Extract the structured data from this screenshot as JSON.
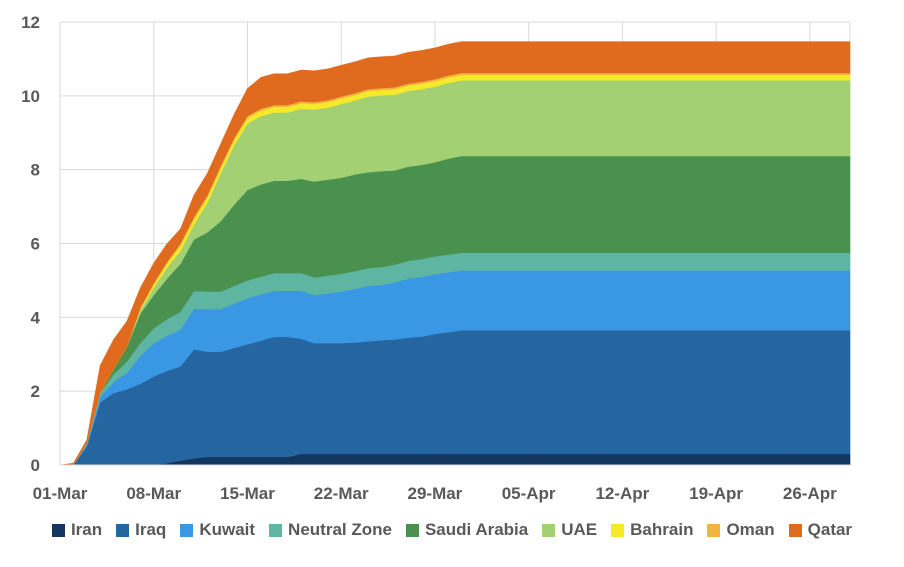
{
  "chart_data": {
    "type": "area",
    "stacked": true,
    "title": "",
    "xlabel": "",
    "ylabel": "",
    "ylim": [
      0,
      12
    ],
    "yticks": [
      "0",
      "2",
      "4",
      "6",
      "8",
      "10",
      "12"
    ],
    "xticks": [
      "01-Mar",
      "08-Mar",
      "15-Mar",
      "22-Mar",
      "29-Mar",
      "05-Apr",
      "12-Apr",
      "19-Apr",
      "26-Apr"
    ],
    "x_range_days": [
      0,
      59
    ],
    "x": [
      0,
      1,
      2,
      3,
      4,
      5,
      6,
      7,
      8,
      9,
      10,
      11,
      12,
      13,
      14,
      15,
      16,
      17,
      18,
      19,
      20,
      21,
      22,
      23,
      24,
      25,
      26,
      27,
      28,
      29,
      30,
      31,
      35,
      40,
      45,
      50,
      55,
      59
    ],
    "series": [
      {
        "name": "Iran",
        "color": "#12365e",
        "values": [
          0,
          0,
          0,
          0,
          0,
          0,
          0,
          0,
          0.05,
          0.12,
          0.18,
          0.22,
          0.22,
          0.22,
          0.22,
          0.22,
          0.22,
          0.22,
          0.3,
          0.3,
          0.3,
          0.3,
          0.3,
          0.3,
          0.3,
          0.3,
          0.3,
          0.3,
          0.3,
          0.3,
          0.3,
          0.3,
          0.3,
          0.3,
          0.3,
          0.3,
          0.3,
          0.3
        ]
      },
      {
        "name": "Iraq",
        "color": "#2566a1",
        "values": [
          0,
          0,
          0.5,
          1.7,
          1.95,
          2.05,
          2.2,
          2.4,
          2.5,
          2.55,
          2.95,
          2.85,
          2.85,
          2.95,
          3.05,
          3.15,
          3.25,
          3.25,
          3.12,
          3.0,
          3.0,
          3.0,
          3.02,
          3.05,
          3.08,
          3.1,
          3.15,
          3.18,
          3.25,
          3.3,
          3.35,
          3.35,
          3.35,
          3.35,
          3.35,
          3.35,
          3.35,
          3.35
        ]
      },
      {
        "name": "Kuwait",
        "color": "#3a97e3",
        "values": [
          0,
          0,
          0.05,
          0.15,
          0.3,
          0.45,
          0.75,
          0.9,
          0.95,
          1.0,
          1.1,
          1.15,
          1.15,
          1.2,
          1.25,
          1.25,
          1.25,
          1.25,
          1.3,
          1.3,
          1.35,
          1.4,
          1.45,
          1.5,
          1.5,
          1.55,
          1.6,
          1.62,
          1.62,
          1.62,
          1.62,
          1.62,
          1.62,
          1.62,
          1.62,
          1.62,
          1.62,
          1.62
        ]
      },
      {
        "name": "Neutral Zone",
        "color": "#5eb5a1",
        "values": [
          0,
          0,
          0.03,
          0.1,
          0.2,
          0.3,
          0.35,
          0.4,
          0.45,
          0.48,
          0.48,
          0.48,
          0.48,
          0.48,
          0.48,
          0.48,
          0.48,
          0.48,
          0.48,
          0.48,
          0.48,
          0.48,
          0.48,
          0.48,
          0.48,
          0.48,
          0.48,
          0.48,
          0.48,
          0.48,
          0.48,
          0.48,
          0.48,
          0.48,
          0.48,
          0.48,
          0.48,
          0.48
        ]
      },
      {
        "name": "Saudi Arabia",
        "color": "#4a9150",
        "values": [
          0,
          0,
          0,
          0,
          0.15,
          0.4,
          0.8,
          0.9,
          1.1,
          1.3,
          1.4,
          1.6,
          1.9,
          2.2,
          2.45,
          2.5,
          2.5,
          2.5,
          2.55,
          2.6,
          2.6,
          2.6,
          2.62,
          2.6,
          2.6,
          2.55,
          2.55,
          2.55,
          2.55,
          2.6,
          2.62,
          2.62,
          2.62,
          2.62,
          2.62,
          2.62,
          2.62,
          2.62
        ]
      },
      {
        "name": "UAE",
        "color": "#a2d073",
        "values": [
          0,
          0,
          0,
          0,
          0,
          0,
          0.1,
          0.2,
          0.3,
          0.35,
          0.4,
          0.8,
          1.3,
          1.6,
          1.8,
          1.85,
          1.85,
          1.85,
          1.9,
          1.95,
          1.95,
          2.0,
          2.0,
          2.05,
          2.05,
          2.05,
          2.05,
          2.05,
          2.05,
          2.05,
          2.05,
          2.05,
          2.05,
          2.05,
          2.05,
          2.05,
          2.05,
          2.05
        ]
      },
      {
        "name": "Bahrain",
        "color": "#f5e92a",
        "values": [
          0,
          0,
          0,
          0,
          0,
          0,
          0.05,
          0.1,
          0.12,
          0.15,
          0.15,
          0.15,
          0.15,
          0.15,
          0.15,
          0.15,
          0.15,
          0.15,
          0.15,
          0.15,
          0.15,
          0.15,
          0.15,
          0.15,
          0.15,
          0.15,
          0.15,
          0.15,
          0.15,
          0.15,
          0.15,
          0.15,
          0.15,
          0.15,
          0.15,
          0.15,
          0.15,
          0.15
        ]
      },
      {
        "name": "Oman",
        "color": "#f2b441",
        "values": [
          0,
          0,
          0,
          0,
          0,
          0,
          0,
          0.02,
          0.03,
          0.05,
          0.05,
          0.05,
          0.05,
          0.05,
          0.05,
          0.05,
          0.05,
          0.05,
          0.05,
          0.05,
          0.05,
          0.05,
          0.05,
          0.05,
          0.05,
          0.05,
          0.05,
          0.05,
          0.05,
          0.05,
          0.05,
          0.05,
          0.05,
          0.05,
          0.05,
          0.05,
          0.05,
          0.05
        ]
      },
      {
        "name": "Qatar",
        "color": "#e06b1f",
        "values": [
          0,
          0.05,
          0.1,
          0.75,
          0.8,
          0.7,
          0.55,
          0.55,
          0.5,
          0.4,
          0.6,
          0.6,
          0.6,
          0.65,
          0.75,
          0.85,
          0.85,
          0.85,
          0.85,
          0.85,
          0.85,
          0.85,
          0.85,
          0.85,
          0.85,
          0.85,
          0.85,
          0.85,
          0.85,
          0.85,
          0.85,
          0.85,
          0.85,
          0.85,
          0.85,
          0.85,
          0.85,
          0.85
        ]
      }
    ]
  }
}
